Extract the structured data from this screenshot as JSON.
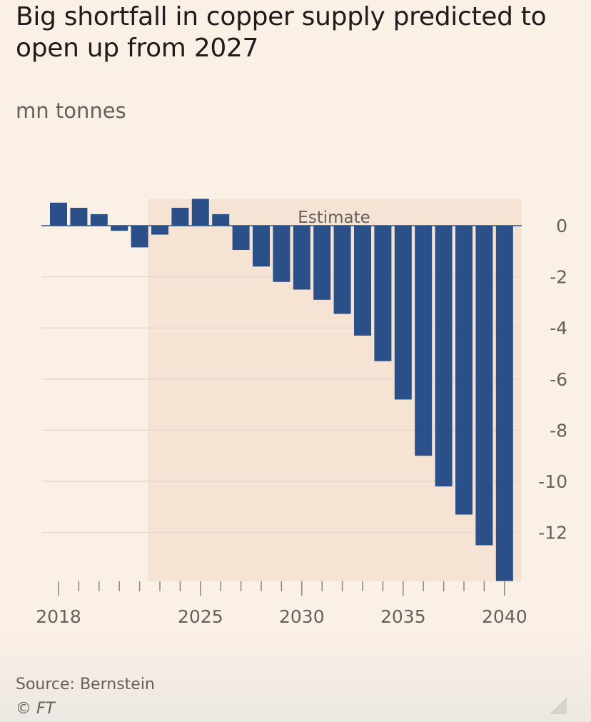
{
  "title": "Big shortfall in copper supply predicted to open up from 2027",
  "subtitle": "mn tonnes",
  "source": "Source: Bernstein",
  "copyright": "© FT",
  "colors": {
    "background": "#fbf0e6",
    "estimate_band": "#f5e3d4",
    "bar": "#2b5089",
    "grid": "#e6d9ce",
    "axis_text": "#66605c"
  },
  "chart_data": {
    "type": "bar",
    "title": "Big shortfall in copper supply predicted to open up from 2027",
    "ylabel": "mn tonnes",
    "xlabel": "",
    "x": [
      2018,
      2019,
      2020,
      2021,
      2022,
      2023,
      2024,
      2025,
      2026,
      2027,
      2028,
      2029,
      2030,
      2031,
      2032,
      2033,
      2034,
      2035,
      2036,
      2037,
      2038,
      2039,
      2040
    ],
    "values": [
      0.9,
      0.7,
      0.45,
      -0.2,
      -0.85,
      -0.35,
      0.7,
      1.05,
      0.45,
      -0.95,
      -1.6,
      -2.2,
      -2.5,
      -2.9,
      -3.45,
      -4.3,
      -5.3,
      -6.8,
      -9.0,
      -10.2,
      -11.3,
      -12.5,
      -13.9
    ],
    "xticks": [
      2018,
      2025,
      2030,
      2035,
      2040
    ],
    "yticks": [
      0,
      -2,
      -4,
      -6,
      -8,
      -10,
      -12
    ],
    "ylim": [
      -13.9,
      1.1
    ],
    "estimate_label": "Estimate",
    "estimate_start": 2023,
    "grid": true
  }
}
